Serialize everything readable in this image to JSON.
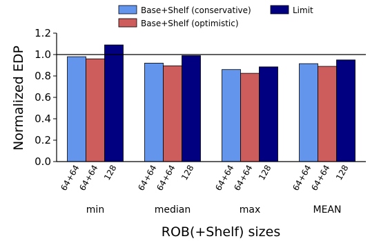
{
  "chart_data": {
    "type": "bar",
    "ylabel": "Normalized EDP",
    "xlabel": "ROB(+Shelf) sizes",
    "ylim": [
      0,
      1.2
    ],
    "yticks": [
      "0.0",
      "0.2",
      "0.4",
      "0.6",
      "0.8",
      "1.0",
      "1.2"
    ],
    "reference_line": 1.0,
    "grid": false,
    "legend_position": "top",
    "categories": [
      "min",
      "median",
      "max",
      "MEAN"
    ],
    "bar_labels": [
      "64+64",
      "64+64",
      "128"
    ],
    "series": [
      {
        "name": "Base+Shelf (conservative)",
        "color": "#6495ed",
        "values": [
          0.98,
          0.92,
          0.86,
          0.915
        ]
      },
      {
        "name": "Base+Shelf (optimistic)",
        "color": "#cd5c5c",
        "values": [
          0.96,
          0.895,
          0.825,
          0.89
        ]
      },
      {
        "name": "Limit",
        "color": "#000080",
        "values": [
          1.09,
          0.99,
          0.885,
          0.95
        ]
      }
    ]
  }
}
